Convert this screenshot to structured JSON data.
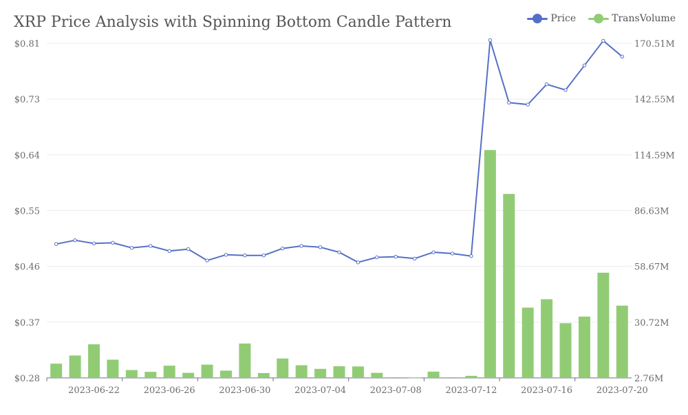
{
  "chart_data": {
    "type": "bar+line",
    "title": "XRP Price Analysis with Spinning Bottom Candle Pattern",
    "x": [
      "2023-06-20",
      "2023-06-21",
      "2023-06-22",
      "2023-06-23",
      "2023-06-24",
      "2023-06-25",
      "2023-06-26",
      "2023-06-27",
      "2023-06-28",
      "2023-06-29",
      "2023-06-30",
      "2023-07-01",
      "2023-07-02",
      "2023-07-03",
      "2023-07-04",
      "2023-07-05",
      "2023-07-06",
      "2023-07-07",
      "2023-07-08",
      "2023-07-09",
      "2023-07-10",
      "2023-07-11",
      "2023-07-12",
      "2023-07-13",
      "2023-07-14",
      "2023-07-15",
      "2023-07-16",
      "2023-07-17",
      "2023-07-18",
      "2023-07-19",
      "2023-07-20"
    ],
    "x_tick_labels": [
      "2023-06-22",
      "2023-06-26",
      "2023-06-30",
      "2023-07-04",
      "2023-07-08",
      "2023-07-12",
      "2023-07-16",
      "2023-07-20"
    ],
    "series": [
      {
        "name": "Price",
        "kind": "line",
        "axis": "left",
        "color": "#5470c6",
        "values": [
          0.492,
          0.498,
          0.493,
          0.494,
          0.486,
          0.489,
          0.481,
          0.484,
          0.466,
          0.475,
          0.474,
          0.474,
          0.485,
          0.489,
          0.487,
          0.479,
          0.463,
          0.471,
          0.472,
          0.469,
          0.479,
          0.477,
          0.473,
          0.815,
          0.716,
          0.713,
          0.745,
          0.736,
          0.775,
          0.814,
          0.789
        ]
      },
      {
        "name": "TransVolume",
        "kind": "bar",
        "axis": "right",
        "color": "#91cc75",
        "values": [
          9900000.0,
          14000000.0,
          19600000.0,
          11900000.0,
          6700000.0,
          5800000.0,
          8900000.0,
          5300000.0,
          9400000.0,
          6400000.0,
          20000000.0,
          5200000.0,
          12500000.0,
          9100000.0,
          7300000.0,
          8600000.0,
          8500000.0,
          5300000.0,
          3100000.0,
          2800000.0,
          5900000.0,
          3100000.0,
          3800000.0,
          117000000.0,
          95000000.0,
          38000000.0,
          42200000.0,
          30200000.0,
          33500000.0,
          55500000.0,
          39000000.0
        ]
      }
    ],
    "y_left": {
      "min": 0.28,
      "max": 0.81,
      "ticks": [
        "$0.28",
        "$0.37",
        "$0.46",
        "$0.55",
        "$0.64",
        "$0.73",
        "$0.81"
      ]
    },
    "y_right": {
      "min": 2760000.0,
      "max": 170510000.0,
      "ticks": [
        "2.76M",
        "30.72M",
        "58.67M",
        "86.63M",
        "114.59M",
        "142.55M",
        "170.51M"
      ]
    },
    "legend_position": "top-right",
    "grid": true
  }
}
